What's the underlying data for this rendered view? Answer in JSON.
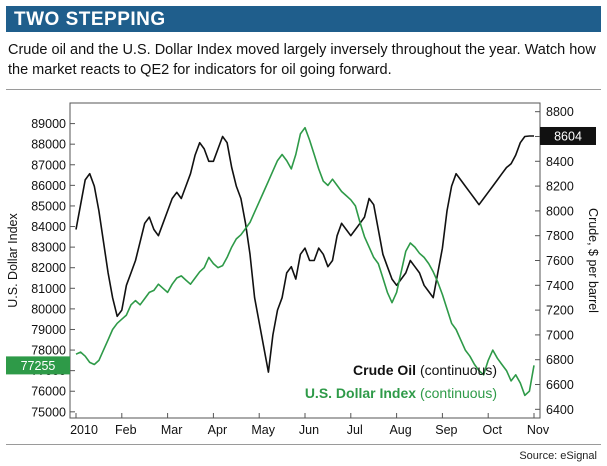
{
  "header": {
    "title": "TWO STEPPING",
    "subtitle": "Crude oil and the U.S. Dollar Index moved largely inversely throughout the year. Watch how the market reacts to QE2 for indicators for oil going forward."
  },
  "footer": {
    "source": "Source: eSignal"
  },
  "colors": {
    "banner": "#1f5e8c",
    "crude": "#111111",
    "usd": "#2e9a48",
    "crude_badge": "#111111",
    "usd_badge": "#2e9a48"
  },
  "chart_data": {
    "type": "line",
    "title": "",
    "x_labels": [
      "2010",
      "Feb",
      "Mar",
      "Apr",
      "May",
      "Jun",
      "Jul",
      "Aug",
      "Sep",
      "Oct",
      "Nov"
    ],
    "left_axis": {
      "label": "U.S. Dollar Index",
      "ticks": [
        75000,
        76000,
        77000,
        78000,
        79000,
        80000,
        81000,
        82000,
        83000,
        84000,
        85000,
        86000,
        87000,
        88000,
        89000
      ],
      "range": [
        74700,
        90000
      ]
    },
    "right_axis": {
      "label": "Crude, $ per barrel",
      "ticks": [
        6400,
        6600,
        6800,
        7000,
        7200,
        7400,
        7600,
        7800,
        8000,
        8200,
        8400,
        8600,
        8800
      ],
      "range": [
        6330,
        8870
      ]
    },
    "badges": {
      "crude_last": "8604",
      "usd_last": "77255"
    },
    "legend_position": "bottom-right",
    "grid": false,
    "series": [
      {
        "name": "Crude Oil",
        "suffix": "(continuous)",
        "axis": "right",
        "t": [
          0,
          0.1,
          0.2,
          0.3,
          0.4,
          0.5,
          0.6,
          0.7,
          0.8,
          0.9,
          1.0,
          1.1,
          1.2,
          1.3,
          1.4,
          1.5,
          1.6,
          1.7,
          1.8,
          1.9,
          2.0,
          2.1,
          2.2,
          2.3,
          2.4,
          2.5,
          2.6,
          2.7,
          2.8,
          2.9,
          3.0,
          3.1,
          3.2,
          3.3,
          3.4,
          3.5,
          3.6,
          3.7,
          3.8,
          3.9,
          4.0,
          4.1,
          4.2,
          4.3,
          4.4,
          4.5,
          4.6,
          4.7,
          4.8,
          4.9,
          5.0,
          5.1,
          5.2,
          5.3,
          5.4,
          5.5,
          5.6,
          5.7,
          5.8,
          5.9,
          6.0,
          6.1,
          6.2,
          6.3,
          6.4,
          6.5,
          6.6,
          6.7,
          6.8,
          6.9,
          7.0,
          7.1,
          7.2,
          7.3,
          7.4,
          7.5,
          7.6,
          7.7,
          7.8,
          7.9,
          8.0,
          8.1,
          8.2,
          8.3,
          8.4,
          8.5,
          8.6,
          8.7,
          8.8,
          8.9,
          9.0,
          9.1,
          9.2,
          9.3,
          9.4,
          9.5,
          9.6,
          9.7,
          9.8,
          9.9,
          10.0
        ],
        "values": [
          7850,
          8050,
          8250,
          8300,
          8200,
          8000,
          7750,
          7500,
          7300,
          7150,
          7200,
          7400,
          7500,
          7600,
          7750,
          7900,
          7950,
          7850,
          7800,
          7900,
          8000,
          8100,
          8150,
          8100,
          8200,
          8300,
          8450,
          8550,
          8500,
          8400,
          8400,
          8500,
          8600,
          8550,
          8350,
          8200,
          8100,
          7900,
          7650,
          7300,
          7100,
          6900,
          6700,
          7000,
          7200,
          7300,
          7500,
          7550,
          7450,
          7650,
          7700,
          7600,
          7600,
          7700,
          7650,
          7550,
          7600,
          7800,
          7900,
          7850,
          7800,
          7850,
          7900,
          7950,
          8100,
          8050,
          7850,
          7650,
          7550,
          7450,
          7400,
          7450,
          7500,
          7600,
          7550,
          7500,
          7400,
          7350,
          7300,
          7500,
          7700,
          8000,
          8200,
          8300,
          8250,
          8200,
          8150,
          8100,
          8050,
          8100,
          8150,
          8200,
          8250,
          8300,
          8350,
          8380,
          8450,
          8550,
          8600,
          8604,
          8604
        ]
      },
      {
        "name": "U.S. Dollar Index",
        "suffix": "(continuous)",
        "axis": "left",
        "t": [
          0,
          0.1,
          0.2,
          0.3,
          0.4,
          0.5,
          0.6,
          0.7,
          0.8,
          0.9,
          1.0,
          1.1,
          1.2,
          1.3,
          1.4,
          1.5,
          1.6,
          1.7,
          1.8,
          1.9,
          2.0,
          2.1,
          2.2,
          2.3,
          2.4,
          2.5,
          2.6,
          2.7,
          2.8,
          2.9,
          3.0,
          3.1,
          3.2,
          3.3,
          3.4,
          3.5,
          3.6,
          3.7,
          3.8,
          3.9,
          4.0,
          4.1,
          4.2,
          4.3,
          4.4,
          4.5,
          4.6,
          4.7,
          4.8,
          4.9,
          5.0,
          5.1,
          5.2,
          5.3,
          5.4,
          5.5,
          5.6,
          5.7,
          5.8,
          5.9,
          6.0,
          6.1,
          6.2,
          6.3,
          6.4,
          6.5,
          6.6,
          6.7,
          6.8,
          6.9,
          7.0,
          7.1,
          7.2,
          7.3,
          7.4,
          7.5,
          7.6,
          7.7,
          7.8,
          7.9,
          8.0,
          8.1,
          8.2,
          8.3,
          8.4,
          8.5,
          8.6,
          8.7,
          8.8,
          8.9,
          9.0,
          9.1,
          9.2,
          9.3,
          9.4,
          9.5,
          9.6,
          9.7,
          9.8,
          9.9,
          10.0
        ],
        "values": [
          77800,
          77900,
          77700,
          77400,
          77300,
          77500,
          78000,
          78500,
          79000,
          79300,
          79500,
          79700,
          80200,
          80400,
          80200,
          80500,
          80800,
          80900,
          81200,
          81000,
          80800,
          81200,
          81500,
          81600,
          81400,
          81200,
          81500,
          81800,
          82000,
          82500,
          82200,
          82000,
          82100,
          82500,
          83000,
          83400,
          83600,
          83900,
          84200,
          84700,
          85200,
          85700,
          86200,
          86700,
          87200,
          87500,
          87200,
          86800,
          87500,
          88500,
          88800,
          88200,
          87500,
          86800,
          86200,
          86000,
          86300,
          86000,
          85700,
          85500,
          85300,
          85000,
          84200,
          83500,
          83000,
          82500,
          82200,
          81500,
          80800,
          80300,
          80800,
          81800,
          82800,
          83200,
          83000,
          82700,
          82500,
          82200,
          81800,
          81300,
          80700,
          80000,
          79300,
          79000,
          78500,
          78000,
          77700,
          77300,
          77000,
          76800,
          77500,
          78000,
          77600,
          77300,
          77000,
          76500,
          76800,
          76400,
          75800,
          76000,
          77255
        ]
      }
    ]
  }
}
